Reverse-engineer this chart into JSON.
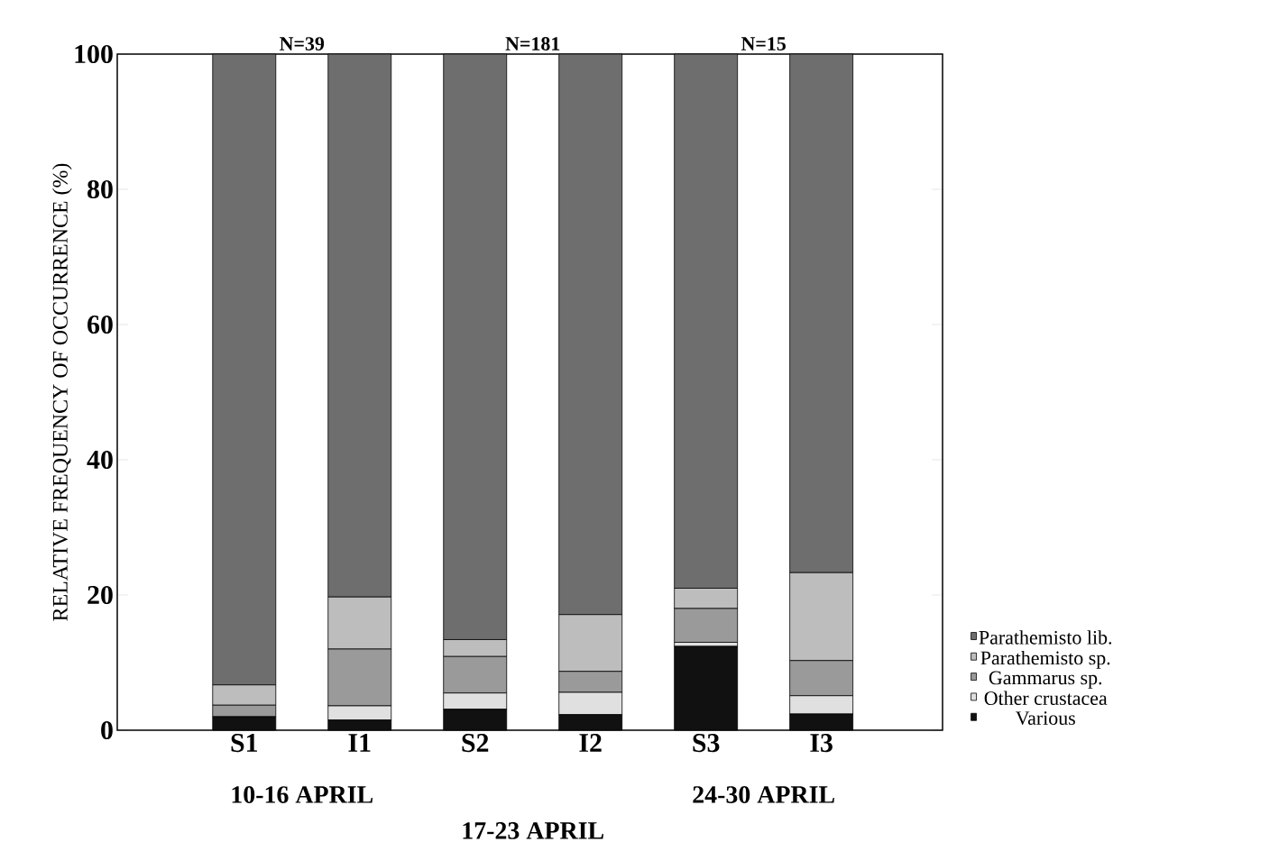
{
  "chart_data": {
    "type": "bar",
    "stacked": true,
    "ylabel": "RELATIVE FREQUENCY OF OCCURRENCE (%)",
    "categories": [
      "S1",
      "I1",
      "S2",
      "I2",
      "S3",
      "I3"
    ],
    "series": [
      {
        "name": "Various",
        "color": "#111111",
        "values": [
          2.0,
          1.5,
          3.1,
          2.3,
          12.4,
          2.4
        ]
      },
      {
        "name": "Other crustacea",
        "color": "#e0e0e0",
        "values": [
          0,
          2.1,
          2.4,
          3.3,
          0.6,
          2.7
        ]
      },
      {
        "name": "Gammarus sp.",
        "color": "#9a9a9a",
        "values": [
          1.7,
          8.4,
          5.4,
          3.1,
          5.0,
          5.2
        ]
      },
      {
        "name": "Parathemisto sp.",
        "color": "#bdbdbd",
        "values": [
          3.0,
          7.7,
          2.5,
          8.4,
          3.0,
          13.0
        ]
      },
      {
        "name": "Parathemisto lib.",
        "color": "#6e6e6e",
        "values": [
          93.3,
          80.3,
          86.6,
          82.9,
          79.0,
          76.7
        ]
      }
    ],
    "ylim": [
      0,
      100
    ],
    "yticks": [
      0,
      20,
      40,
      60,
      80,
      100
    ],
    "grid": false,
    "legend": "right",
    "annotations": [
      "N=39",
      "N=181",
      "N=15",
      "10-16 APRIL",
      "17-23 APRIL",
      "24-30 APRIL"
    ]
  }
}
